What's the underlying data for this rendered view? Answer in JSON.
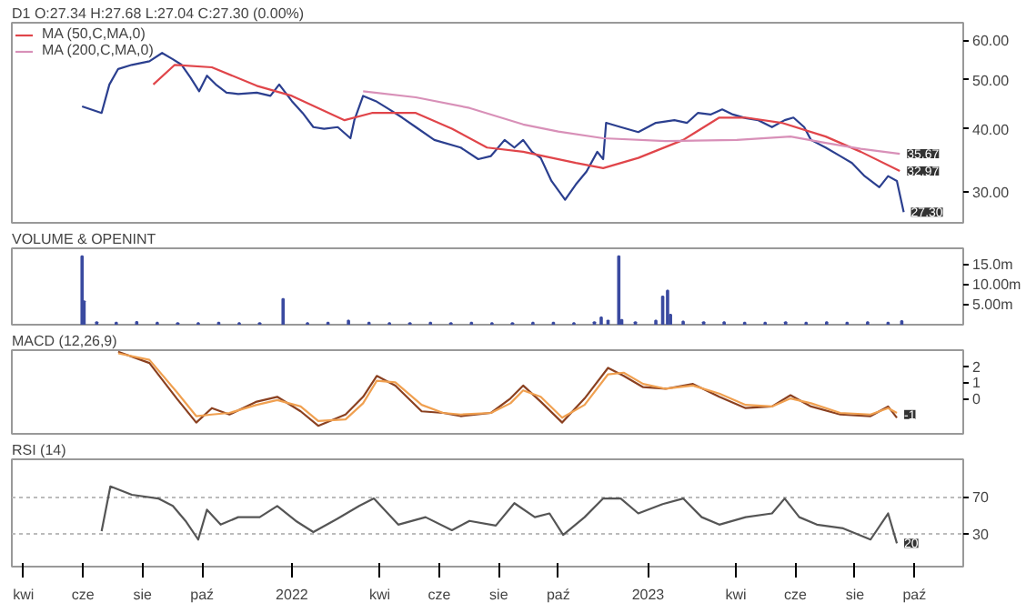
{
  "chart_data": [
    {
      "type": "line",
      "title": "D1 O:27.34 H:27.68 L:27.04 C:27.30 (0.00%)",
      "log": "y",
      "legend": "top left",
      "tick_labels": "y",
      "xlim": [
        "2021-03-20",
        "2023-11-20"
      ],
      "ylim": [
        26,
        65
      ],
      "yticks": [
        {
          "value": 30,
          "label": "30.00"
        },
        {
          "value": 40,
          "label": "40.00"
        },
        {
          "value": 50,
          "label": "50.00"
        },
        {
          "value": 60,
          "label": "60.00"
        }
      ],
      "series": [
        {
          "color": "#2b3f8f",
          "x": [
            "2021-05-31",
            "2021-06-20",
            "2021-06-28",
            "2021-07-07",
            "2021-07-21",
            "2021-08-08",
            "2021-08-21",
            "2021-09-01",
            "2021-09-10",
            "2021-09-19",
            "2021-09-28",
            "2021-10-06",
            "2021-10-15",
            "2021-10-26",
            "2021-11-07",
            "2021-11-26",
            "2021-12-10",
            "2021-12-19",
            "2022-01-01",
            "2022-01-12",
            "2022-01-23",
            "2022-02-03",
            "2022-02-17",
            "2022-03-02",
            "2022-03-06",
            "2022-03-15",
            "2022-03-28",
            "2022-04-11",
            "2022-04-24",
            "2022-05-08",
            "2022-05-27",
            "2022-06-23",
            "2022-07-11",
            "2022-07-24",
            "2022-08-07",
            "2022-08-17",
            "2022-08-26",
            "2022-09-04",
            "2022-09-13",
            "2022-09-24",
            "2022-10-08",
            "2022-10-19",
            "2022-10-30",
            "2022-11-10",
            "2022-11-16",
            "2022-11-19",
            "2022-12-04",
            "2022-12-22",
            "2023-01-09",
            "2023-01-28",
            "2023-02-10",
            "2023-02-21",
            "2023-03-06",
            "2023-03-18",
            "2023-03-29",
            "2023-04-11",
            "2023-04-24",
            "2023-05-08",
            "2023-05-21",
            "2023-05-30",
            "2023-06-10",
            "2023-06-17",
            "2023-07-02",
            "2023-07-17",
            "2023-07-29",
            "2023-08-11",
            "2023-08-26",
            "2023-09-04",
            "2023-09-13",
            "2023-09-20"
          ],
          "values": [
            44.3,
            43,
            49,
            52.6,
            53.6,
            54.5,
            56.6,
            55,
            53.6,
            50.6,
            47.5,
            51,
            49,
            47.2,
            46.9,
            47.2,
            46.5,
            49,
            45.4,
            43,
            40.3,
            40,
            40.3,
            38.3,
            41.6,
            46.5,
            45.4,
            43.7,
            42.1,
            40.3,
            38,
            36.7,
            34.8,
            35.3,
            38,
            36.7,
            38,
            36,
            35,
            31.5,
            28.9,
            31,
            32.9,
            36,
            34.8,
            41.1,
            40.3,
            39.4,
            41.1,
            41.6,
            41.1,
            43,
            42.7,
            43.7,
            42.7,
            42,
            41.6,
            40.3,
            41.6,
            42.1,
            40.3,
            38,
            36.7,
            35.3,
            34.2,
            32.2,
            30.6,
            32.2,
            31.5,
            27.3
          ]
        },
        {
          "name": "MA (50,C,MA,0)",
          "color": "#e0454a",
          "x": [
            "2021-08-12",
            "2021-09-03",
            "2021-10-11",
            "2021-11-26",
            "2022-01-01",
            "2022-02-24",
            "2022-03-24",
            "2022-05-08",
            "2022-06-14",
            "2022-07-20",
            "2022-08-26",
            "2022-10-19",
            "2022-11-16",
            "2022-12-22",
            "2023-02-06",
            "2023-03-15",
            "2023-04-11",
            "2023-05-18",
            "2023-07-02",
            "2023-08-07",
            "2023-09-16"
          ],
          "values": [
            49,
            53.6,
            53,
            48.7,
            46.5,
            41.6,
            43,
            43,
            40,
            36.7,
            36,
            34.2,
            33.4,
            35,
            38,
            42.1,
            42.1,
            41.1,
            38.6,
            36,
            32.97
          ]
        },
        {
          "name": "MA (200,C,MA,0)",
          "color": "#d890b8",
          "x": [
            "2022-03-15",
            "2022-05-08",
            "2022-07-02",
            "2022-08-26",
            "2022-10-01",
            "2022-11-16",
            "2023-01-19",
            "2023-04-02",
            "2023-05-27",
            "2023-07-02",
            "2023-08-07",
            "2023-09-16"
          ],
          "values": [
            47.5,
            46.2,
            44,
            40.8,
            39.5,
            38.3,
            37.8,
            38,
            38.6,
            37.5,
            36.5,
            35.67
          ]
        }
      ],
      "annotations": [
        {
          "text": "35.67",
          "x": "2023-09-16",
          "y": 35.67
        },
        {
          "text": "32.97",
          "x": "2023-09-16",
          "y": 32.97
        },
        {
          "text": "27.30",
          "x": "2023-09-20",
          "y": 27.3
        }
      ]
    },
    {
      "type": "bar",
      "title": "VOLUME & OPENINT",
      "tick_labels": "y",
      "xlim": [
        "2021-03-20",
        "2023-11-20"
      ],
      "ylim": [
        0,
        19
      ],
      "yticks": [
        {
          "value": 5,
          "label": "5.00m"
        },
        {
          "value": 10,
          "label": "10.00m"
        },
        {
          "value": 15,
          "label": "15.0m"
        }
      ],
      "series": [
        {
          "color": "#3a4aa0",
          "x": [
            "2021-05-31",
            "2021-06-02",
            "2021-06-15",
            "2021-07-05",
            "2021-07-26",
            "2021-08-16",
            "2021-09-06",
            "2021-09-27",
            "2021-10-18",
            "2021-11-08",
            "2021-11-29",
            "2021-12-23",
            "2022-01-17",
            "2022-02-07",
            "2022-02-28",
            "2022-03-21",
            "2022-04-11",
            "2022-05-02",
            "2022-05-23",
            "2022-06-13",
            "2022-07-04",
            "2022-07-25",
            "2022-08-15",
            "2022-09-05",
            "2022-09-26",
            "2022-10-17",
            "2022-11-07",
            "2022-11-14",
            "2022-11-21",
            "2022-12-02",
            "2022-12-05",
            "2022-12-19",
            "2023-01-09",
            "2023-01-16",
            "2023-01-21",
            "2023-01-24",
            "2023-02-06",
            "2023-02-27",
            "2023-03-20",
            "2023-04-10",
            "2023-05-01",
            "2023-05-22",
            "2023-06-12",
            "2023-07-03",
            "2023-07-24",
            "2023-08-14",
            "2023-09-04",
            "2023-09-18"
          ],
          "values": [
            17,
            5.8,
            0.6,
            0.5,
            0.7,
            0.5,
            0.4,
            0.4,
            0.5,
            0.4,
            0.4,
            6.4,
            0.4,
            0.5,
            1,
            0.5,
            0.4,
            0.4,
            0.5,
            0.4,
            0.5,
            0.4,
            0.4,
            0.5,
            0.5,
            0.4,
            0.6,
            1.8,
            1,
            17,
            1.2,
            0.6,
            1,
            7,
            8.5,
            2.5,
            0.8,
            0.6,
            0.6,
            0.5,
            0.5,
            0.6,
            0.5,
            0.6,
            0.5,
            0.6,
            0.5,
            0.9
          ]
        }
      ]
    },
    {
      "type": "line",
      "title": "MACD (12,26,9)",
      "tick_labels": "y",
      "xlim": [
        "2021-03-20",
        "2023-11-20"
      ],
      "ylim": [
        -2.2,
        3
      ],
      "yticks": [
        0,
        1,
        2
      ],
      "x": [
        "2021-07-07",
        "2021-08-08",
        "2021-09-05",
        "2021-09-25",
        "2021-10-11",
        "2021-10-29",
        "2021-11-26",
        "2021-12-17",
        "2022-01-10",
        "2022-01-28",
        "2022-02-25",
        "2022-03-15",
        "2022-03-29",
        "2022-04-17",
        "2022-05-14",
        "2022-06-05",
        "2022-06-23",
        "2022-07-24",
        "2022-08-13",
        "2022-08-26",
        "2022-09-13",
        "2022-10-05",
        "2022-10-28",
        "2022-11-21",
        "2022-12-07",
        "2022-12-27",
        "2023-01-19",
        "2023-02-16",
        "2023-03-15",
        "2023-04-11",
        "2023-05-08",
        "2023-05-27",
        "2023-06-17",
        "2023-07-17",
        "2023-08-17",
        "2023-09-04",
        "2023-09-13"
      ],
      "series": [
        {
          "color": "#8a4020",
          "values": [
            2.9,
            2.2,
            0,
            -1.5,
            -0.6,
            -1,
            -0.2,
            0.1,
            -0.8,
            -1.7,
            -1,
            0.1,
            1.4,
            0.8,
            -0.8,
            -0.9,
            -1.1,
            -0.9,
            0,
            0.8,
            -0.2,
            -1.5,
            0,
            1.9,
            1.4,
            0.7,
            0.6,
            0.9,
            0.1,
            -0.6,
            -0.5,
            0.2,
            -0.5,
            -1,
            -1.1,
            -0.5,
            -1.2
          ]
        },
        {
          "color": "#f0a050",
          "values": [
            2.8,
            2.4,
            0.4,
            -1.1,
            -1,
            -0.9,
            -0.4,
            -0.1,
            -0.5,
            -1.4,
            -1.3,
            -0.3,
            1.1,
            1,
            -0.4,
            -0.9,
            -1,
            -0.9,
            -0.3,
            0.5,
            0.1,
            -1.2,
            -0.4,
            1.5,
            1.6,
            0.9,
            0.6,
            0.8,
            0.3,
            -0.4,
            -0.5,
            0,
            -0.3,
            -0.9,
            -1,
            -0.6,
            -0.9
          ]
        }
      ],
      "annotations": [
        {
          "text": "-1",
          "x": "2023-09-13",
          "y": -1
        }
      ]
    },
    {
      "type": "line",
      "title": "RSI (14)",
      "grid": "y",
      "xlim": [
        "2021-03-20",
        "2023-11-20"
      ],
      "xticks": [
        {
          "value": "2021-04-01",
          "label": "kwi"
        },
        {
          "value": "2021-06-01",
          "label": "cze"
        },
        {
          "value": "2021-08-01",
          "label": "sie"
        },
        {
          "value": "2021-10-01",
          "label": "paź"
        },
        {
          "value": "2022-01-01",
          "label": "2022"
        },
        {
          "value": "2022-04-01",
          "label": "kwi"
        },
        {
          "value": "2022-06-01",
          "label": "cze"
        },
        {
          "value": "2022-08-01",
          "label": "sie"
        },
        {
          "value": "2022-10-01",
          "label": "paź"
        },
        {
          "value": "2023-01-01",
          "label": "2023"
        },
        {
          "value": "2023-04-01",
          "label": "kwi"
        },
        {
          "value": "2023-06-01",
          "label": "cze"
        },
        {
          "value": "2023-08-01",
          "label": "sie"
        },
        {
          "value": "2023-10-01",
          "label": "paź"
        }
      ],
      "ylim": [
        -5,
        110
      ],
      "yticks": [
        30,
        70
      ],
      "series": [
        {
          "color": "#555555",
          "x": [
            "2021-06-20",
            "2021-06-29",
            "2021-07-21",
            "2021-08-17",
            "2021-09-01",
            "2021-09-14",
            "2021-09-27",
            "2021-10-06",
            "2021-10-20",
            "2021-11-07",
            "2021-11-29",
            "2021-12-17",
            "2022-01-05",
            "2022-01-23",
            "2022-02-16",
            "2022-03-11",
            "2022-03-26",
            "2022-04-20",
            "2022-05-18",
            "2022-06-14",
            "2022-07-02",
            "2022-07-29",
            "2022-08-17",
            "2022-09-07",
            "2022-09-22",
            "2022-10-06",
            "2022-10-28",
            "2022-11-16",
            "2022-12-04",
            "2022-12-22",
            "2023-01-16",
            "2023-02-06",
            "2023-02-25",
            "2023-03-15",
            "2023-04-11",
            "2023-05-08",
            "2023-05-21",
            "2023-06-05",
            "2023-06-23",
            "2023-07-20",
            "2023-08-17",
            "2023-09-04",
            "2023-09-13"
          ],
          "values": [
            33,
            81,
            72,
            68,
            60,
            44,
            24,
            56,
            40,
            48,
            48,
            60,
            44,
            32,
            46,
            60,
            68,
            40,
            48,
            34,
            44,
            39,
            63,
            48,
            52,
            29,
            48,
            68,
            68,
            52,
            62,
            68,
            48,
            40,
            48,
            52,
            68,
            48,
            40,
            36,
            24,
            52,
            20
          ]
        }
      ],
      "annotations": [
        {
          "text": "20",
          "x": "2023-09-13",
          "y": 20
        }
      ]
    }
  ]
}
